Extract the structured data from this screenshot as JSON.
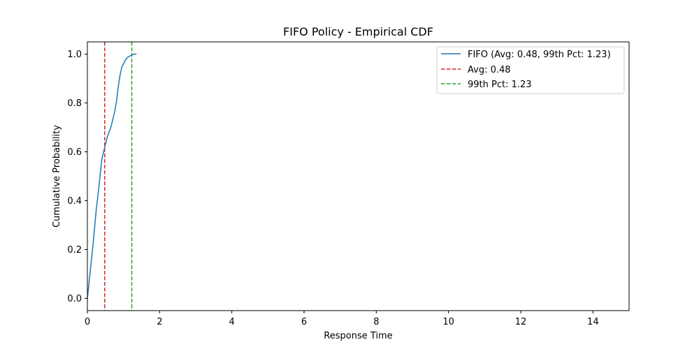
{
  "chart_data": {
    "type": "line",
    "title": "FIFO Policy - Empirical CDF",
    "xlabel": "Response Time",
    "ylabel": "Cumulative Probability",
    "xlim": [
      0,
      15
    ],
    "ylim": [
      -0.05,
      1.05
    ],
    "xticks": [
      0,
      2,
      4,
      6,
      8,
      10,
      12,
      14
    ],
    "yticks": [
      0.0,
      0.2,
      0.4,
      0.6,
      0.8,
      1.0
    ],
    "xtick_labels": [
      "0",
      "2",
      "4",
      "6",
      "8",
      "10",
      "12",
      "14"
    ],
    "ytick_labels": [
      "0.0",
      "0.2",
      "0.4",
      "0.6",
      "0.8",
      "1.0"
    ],
    "grid": false,
    "legend_position": "top-right",
    "series": [
      {
        "name": "FIFO (Avg: 0.48, 99th Pct: 1.23)",
        "color": "#1f77b4",
        "style": "solid",
        "x": [
          0.0,
          0.05,
          0.1,
          0.15,
          0.2,
          0.25,
          0.3,
          0.35,
          0.4,
          0.45,
          0.5,
          0.55,
          0.6,
          0.65,
          0.7,
          0.75,
          0.8,
          0.85,
          0.9,
          0.95,
          1.0,
          1.05,
          1.1,
          1.15,
          1.2,
          1.25,
          1.3,
          1.35
        ],
        "y": [
          0.0,
          0.07,
          0.14,
          0.21,
          0.29,
          0.37,
          0.43,
          0.5,
          0.57,
          0.6,
          0.63,
          0.66,
          0.68,
          0.7,
          0.73,
          0.76,
          0.8,
          0.86,
          0.91,
          0.945,
          0.96,
          0.975,
          0.985,
          0.99,
          0.994,
          0.998,
          1.0,
          1.0
        ]
      }
    ],
    "vlines": [
      {
        "name": "Avg: 0.48",
        "x": 0.48,
        "color": "#d62728",
        "style": "dashed"
      },
      {
        "name": "99th Pct: 1.23",
        "x": 1.23,
        "color": "#2ca02c",
        "style": "dashed"
      }
    ]
  }
}
